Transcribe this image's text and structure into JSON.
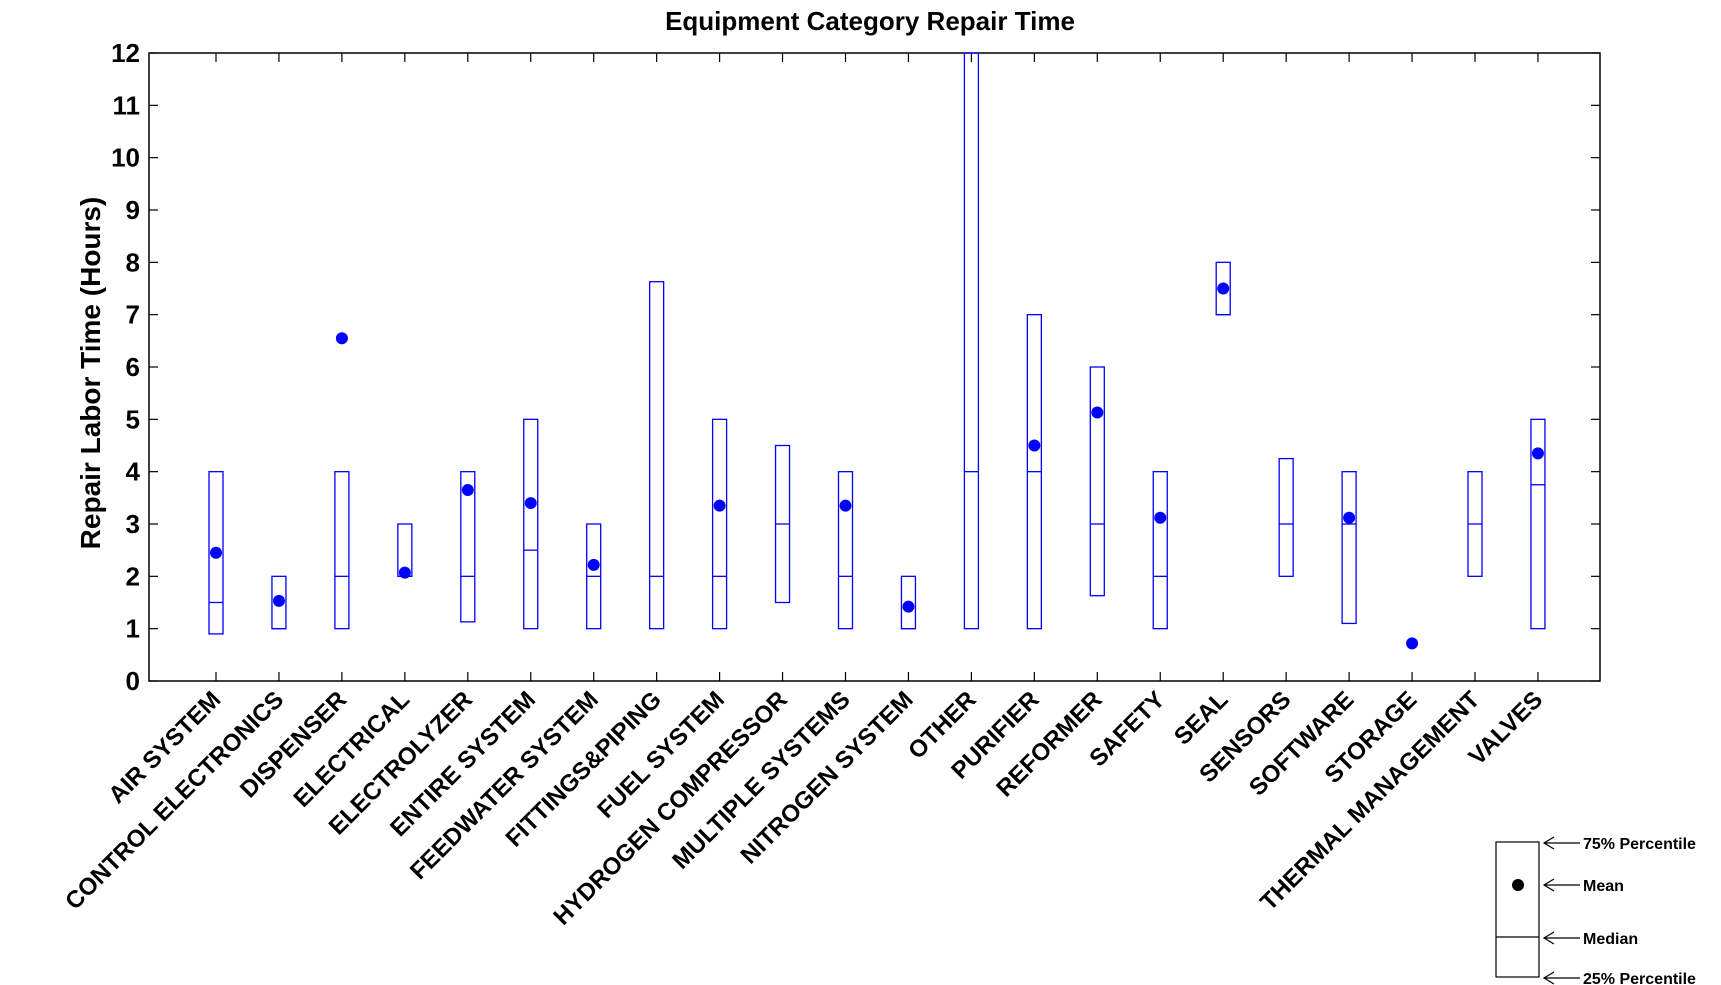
{
  "chart_data": {
    "type": "box",
    "title": "Equipment Category Repair Time",
    "xlabel": "",
    "ylabel": "Repair Labor Time (Hours)",
    "ylim": [
      0,
      12
    ],
    "yticks": [
      "0",
      "1",
      "2",
      "3",
      "4",
      "5",
      "6",
      "7",
      "8",
      "9",
      "10",
      "11",
      "12"
    ],
    "grid": false,
    "colors": {
      "series": "#0000ff",
      "axis": "#000000",
      "legend": "#000000"
    },
    "categories": [
      "AIR SYSTEM",
      "CONTROL ELECTRONICS",
      "DISPENSER",
      "ELECTRICAL",
      "ELECTROLYZER",
      "ENTIRE SYSTEM",
      "FEEDWATER SYSTEM",
      "FITTINGS&PIPING",
      "FUEL SYSTEM",
      "HYDROGEN COMPRESSOR",
      "MULTIPLE SYSTEMS",
      "NITROGEN SYSTEM",
      "OTHER",
      "PURIFIER",
      "REFORMER",
      "SAFETY",
      "SEAL",
      "SENSORS",
      "SOFTWARE",
      "STORAGE",
      "THERMAL MANAGEMENT",
      "VALVES"
    ],
    "boxes": [
      {
        "category": "AIR SYSTEM",
        "q1": 0.9,
        "median": 1.5,
        "q3": 4.0,
        "mean": 2.45
      },
      {
        "category": "CONTROL ELECTRONICS",
        "q1": 1.0,
        "median": 1.0,
        "q3": 2.0,
        "mean": 1.53
      },
      {
        "category": "DISPENSER",
        "q1": 1.0,
        "median": 2.0,
        "q3": 4.0,
        "mean": 6.55
      },
      {
        "category": "ELECTRICAL",
        "q1": 2.0,
        "median": 2.0,
        "q3": 3.0,
        "mean": 2.07
      },
      {
        "category": "ELECTROLYZER",
        "q1": 1.13,
        "median": 2.0,
        "q3": 4.0,
        "mean": 3.65
      },
      {
        "category": "ENTIRE SYSTEM",
        "q1": 1.0,
        "median": 2.5,
        "q3": 5.0,
        "mean": 3.4
      },
      {
        "category": "FEEDWATER SYSTEM",
        "q1": 1.0,
        "median": 2.0,
        "q3": 3.0,
        "mean": 2.22
      },
      {
        "category": "FITTINGS&PIPING",
        "q1": 1.0,
        "median": 2.0,
        "q3": 7.63,
        "mean": null
      },
      {
        "category": "FUEL SYSTEM",
        "q1": 1.0,
        "median": 2.0,
        "q3": 5.0,
        "mean": 3.35
      },
      {
        "category": "HYDROGEN COMPRESSOR",
        "q1": 1.5,
        "median": 3.0,
        "q3": 4.5,
        "mean": null
      },
      {
        "category": "MULTIPLE SYSTEMS",
        "q1": 1.0,
        "median": 2.0,
        "q3": 4.0,
        "mean": 3.35
      },
      {
        "category": "NITROGEN SYSTEM",
        "q1": 1.0,
        "median": 1.0,
        "q3": 2.0,
        "mean": 1.42
      },
      {
        "category": "OTHER",
        "q1": 1.0,
        "median": 4.0,
        "q3": 12.0,
        "mean": null
      },
      {
        "category": "PURIFIER",
        "q1": 1.0,
        "median": 4.0,
        "q3": 7.0,
        "mean": 4.5
      },
      {
        "category": "REFORMER",
        "q1": 1.63,
        "median": 3.0,
        "q3": 6.0,
        "mean": 5.13
      },
      {
        "category": "SAFETY",
        "q1": 1.0,
        "median": 2.0,
        "q3": 4.0,
        "mean": 3.12
      },
      {
        "category": "SEAL",
        "q1": 7.0,
        "median": 7.0,
        "q3": 8.0,
        "mean": 7.5
      },
      {
        "category": "SENSORS",
        "q1": 2.0,
        "median": 3.0,
        "q3": 4.25,
        "mean": null
      },
      {
        "category": "SOFTWARE",
        "q1": 1.1,
        "median": 3.0,
        "q3": 4.0,
        "mean": 3.12
      },
      {
        "category": "STORAGE",
        "q1": null,
        "median": null,
        "q3": null,
        "mean": 0.72
      },
      {
        "category": "THERMAL MANAGEMENT",
        "q1": 2.0,
        "median": 3.0,
        "q3": 4.0,
        "mean": null
      },
      {
        "category": "VALVES",
        "q1": 1.0,
        "median": 3.75,
        "q3": 5.0,
        "mean": 4.35
      }
    ],
    "legend": {
      "position": "bottom-right",
      "items": [
        "75% Percentile",
        "Mean",
        "Median",
        "25% Percentile"
      ]
    }
  }
}
